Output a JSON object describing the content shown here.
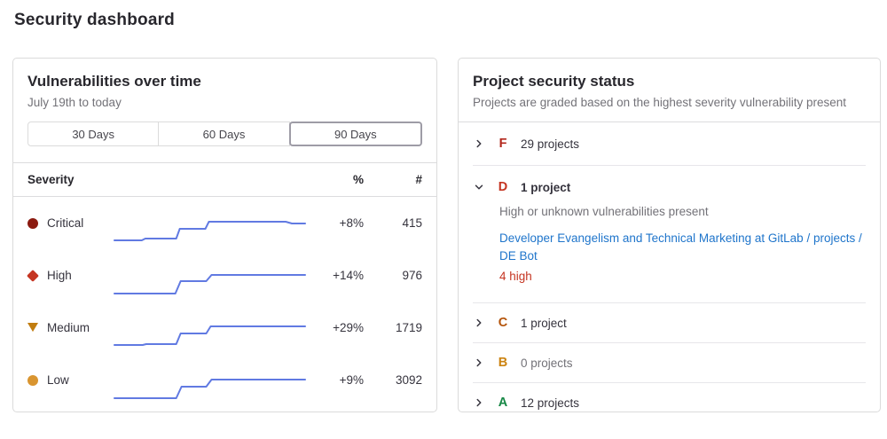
{
  "page": {
    "title": "Security dashboard"
  },
  "vuln_panel": {
    "title": "Vulnerabilities over time",
    "subtitle": "July 19th to today",
    "range_buttons": [
      {
        "label": "30 Days",
        "selected": false
      },
      {
        "label": "60 Days",
        "selected": false
      },
      {
        "label": "90 Days",
        "selected": true
      }
    ],
    "table_headers": {
      "severity": "Severity",
      "percent": "%",
      "count": "#"
    }
  },
  "chart_data": {
    "type": "line",
    "title": "Vulnerabilities over time",
    "date_range": "July 19th to today",
    "selected_range": "90 Days",
    "line_color": "#617ae2",
    "x_axis": "time, July 19th to today (90 days)",
    "y_axis": "open vulnerabilities (sparkline per severity)",
    "series": [
      {
        "name": "Critical",
        "icon": "circle",
        "color": "#8b1a10",
        "change_percent": "+8%",
        "count": 415,
        "trend": [
          [
            2,
            33
          ],
          [
            33,
            33
          ],
          [
            37,
            31
          ],
          [
            72,
            31
          ],
          [
            76,
            20
          ],
          [
            105,
            20
          ],
          [
            109,
            12
          ],
          [
            196,
            12
          ],
          [
            203,
            14
          ],
          [
            218,
            14
          ]
        ]
      },
      {
        "name": "High",
        "icon": "diamond",
        "color": "#c53522",
        "change_percent": "+14%",
        "count": 976,
        "trend": [
          [
            2,
            34
          ],
          [
            71,
            34
          ],
          [
            77,
            20
          ],
          [
            106,
            20
          ],
          [
            112,
            13
          ],
          [
            218,
            13
          ]
        ]
      },
      {
        "name": "Medium",
        "icon": "triangle-down",
        "color": "#c17d10",
        "change_percent": "+29%",
        "count": 1719,
        "trend": [
          [
            2,
            33
          ],
          [
            34,
            33
          ],
          [
            38,
            32
          ],
          [
            72,
            32
          ],
          [
            77,
            20
          ],
          [
            106,
            20
          ],
          [
            111,
            12
          ],
          [
            218,
            12
          ]
        ]
      },
      {
        "name": "Low",
        "icon": "circle",
        "color": "#d99530",
        "change_percent": "+9%",
        "count": 3092,
        "trend": [
          [
            2,
            34
          ],
          [
            72,
            34
          ],
          [
            78,
            21
          ],
          [
            106,
            21
          ],
          [
            112,
            13
          ],
          [
            218,
            13
          ]
        ]
      }
    ]
  },
  "status_panel": {
    "title": "Project security status",
    "subtitle": "Projects are graded based on the highest severity vulnerability present",
    "link_color": "#1f75cb",
    "grades": [
      {
        "letter": "F",
        "color": "#b2261b",
        "count_label": "29 projects",
        "expanded": false
      },
      {
        "letter": "D",
        "color": "#c53522",
        "count_label": "1 project",
        "expanded": true,
        "description": "High or unknown vulnerabilities present",
        "project_link": "Developer Evangelism and Technical Marketing at GitLab / projects / DE Bot",
        "vulnerability_summary": "4 high",
        "summary_color": "#c53522"
      },
      {
        "letter": "C",
        "color": "#b45309",
        "count_label": "1 project",
        "expanded": false
      },
      {
        "letter": "B",
        "color": "#cc8412",
        "count_label": "0 projects",
        "expanded": false
      },
      {
        "letter": "A",
        "color": "#158744",
        "count_label": "12 projects",
        "expanded": false
      }
    ]
  }
}
